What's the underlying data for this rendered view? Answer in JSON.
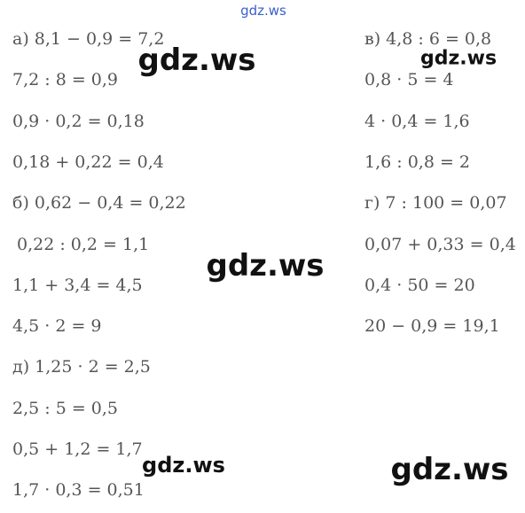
{
  "left": [
    "а) 8,1 − 0,9 = 7,2",
    "7,2 : 8 = 0,9",
    "0,9 · 0,2 = 0,18",
    "0,18 + 0,22 = 0,4",
    "б) 0,62 − 0,4 = 0,22",
    "0,22 : 0,2 = 1,1",
    "1,1 + 3,4 = 4,5",
    "4,5 · 2 = 9",
    "д) 1,25 · 2 = 2,5",
    "2,5 : 5 = 0,5",
    "0,5 + 1,2 = 1,7",
    "1,7 · 0,3 = 0,51"
  ],
  "right": [
    "в) 4,8 : 6 = 0,8",
    "0,8 · 5 = 4",
    "4 · 0,4 = 1,6",
    "1,6 : 0,8 = 2",
    "г) 7 : 100 = 0,07",
    "0,07 + 0,33 = 0,4",
    "0,4 · 50 = 20",
    "20 − 0,9 = 19,1"
  ],
  "watermarks": [
    "gdz.ws",
    "gdz.ws",
    "gdz.ws",
    "gdz.ws",
    "gdz.ws",
    "gdz.ws"
  ]
}
